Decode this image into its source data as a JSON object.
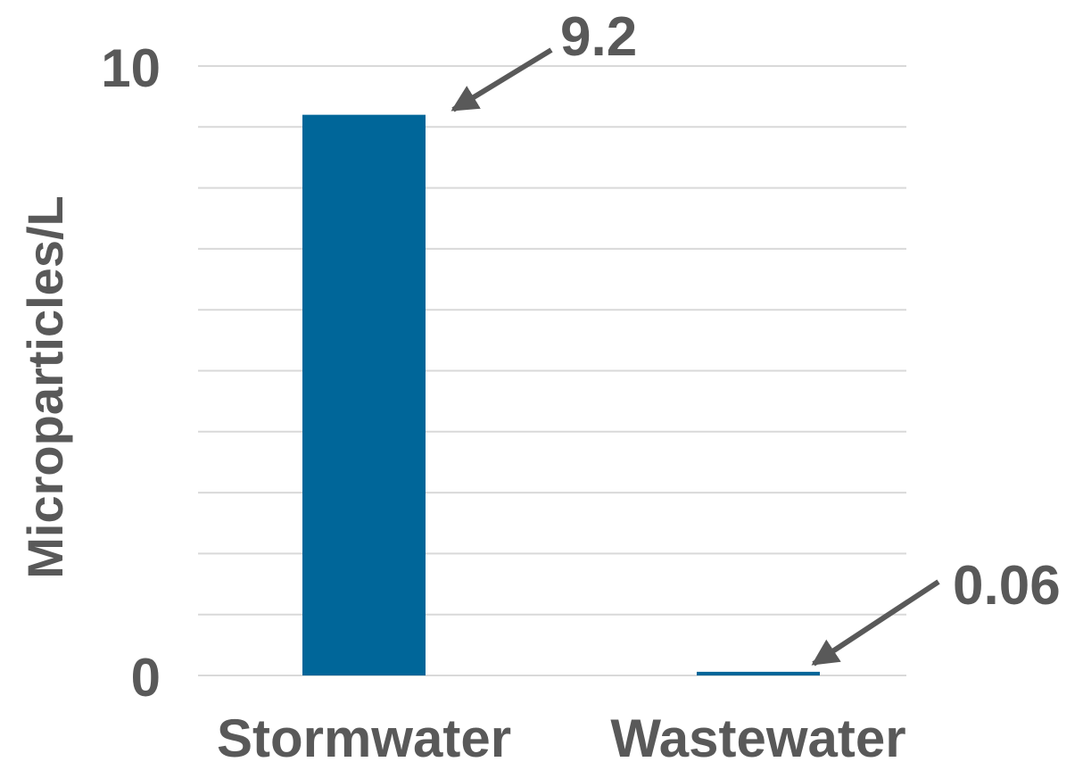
{
  "chart_data": {
    "type": "bar",
    "categories": [
      "Stormwater",
      "Wastewater"
    ],
    "values": [
      9.2,
      0.06
    ],
    "data_labels": [
      "9.2",
      "0.06"
    ],
    "title": "",
    "xlabel": "",
    "ylabel": "Microparticles/L",
    "ylim": [
      0,
      10
    ],
    "ytick_labels": [
      "0",
      "10"
    ],
    "gridlines": true,
    "bar_color": "#006699",
    "gridline_color": "#d9d9d9",
    "text_color": "#595959",
    "annotation_style": "arrow"
  }
}
